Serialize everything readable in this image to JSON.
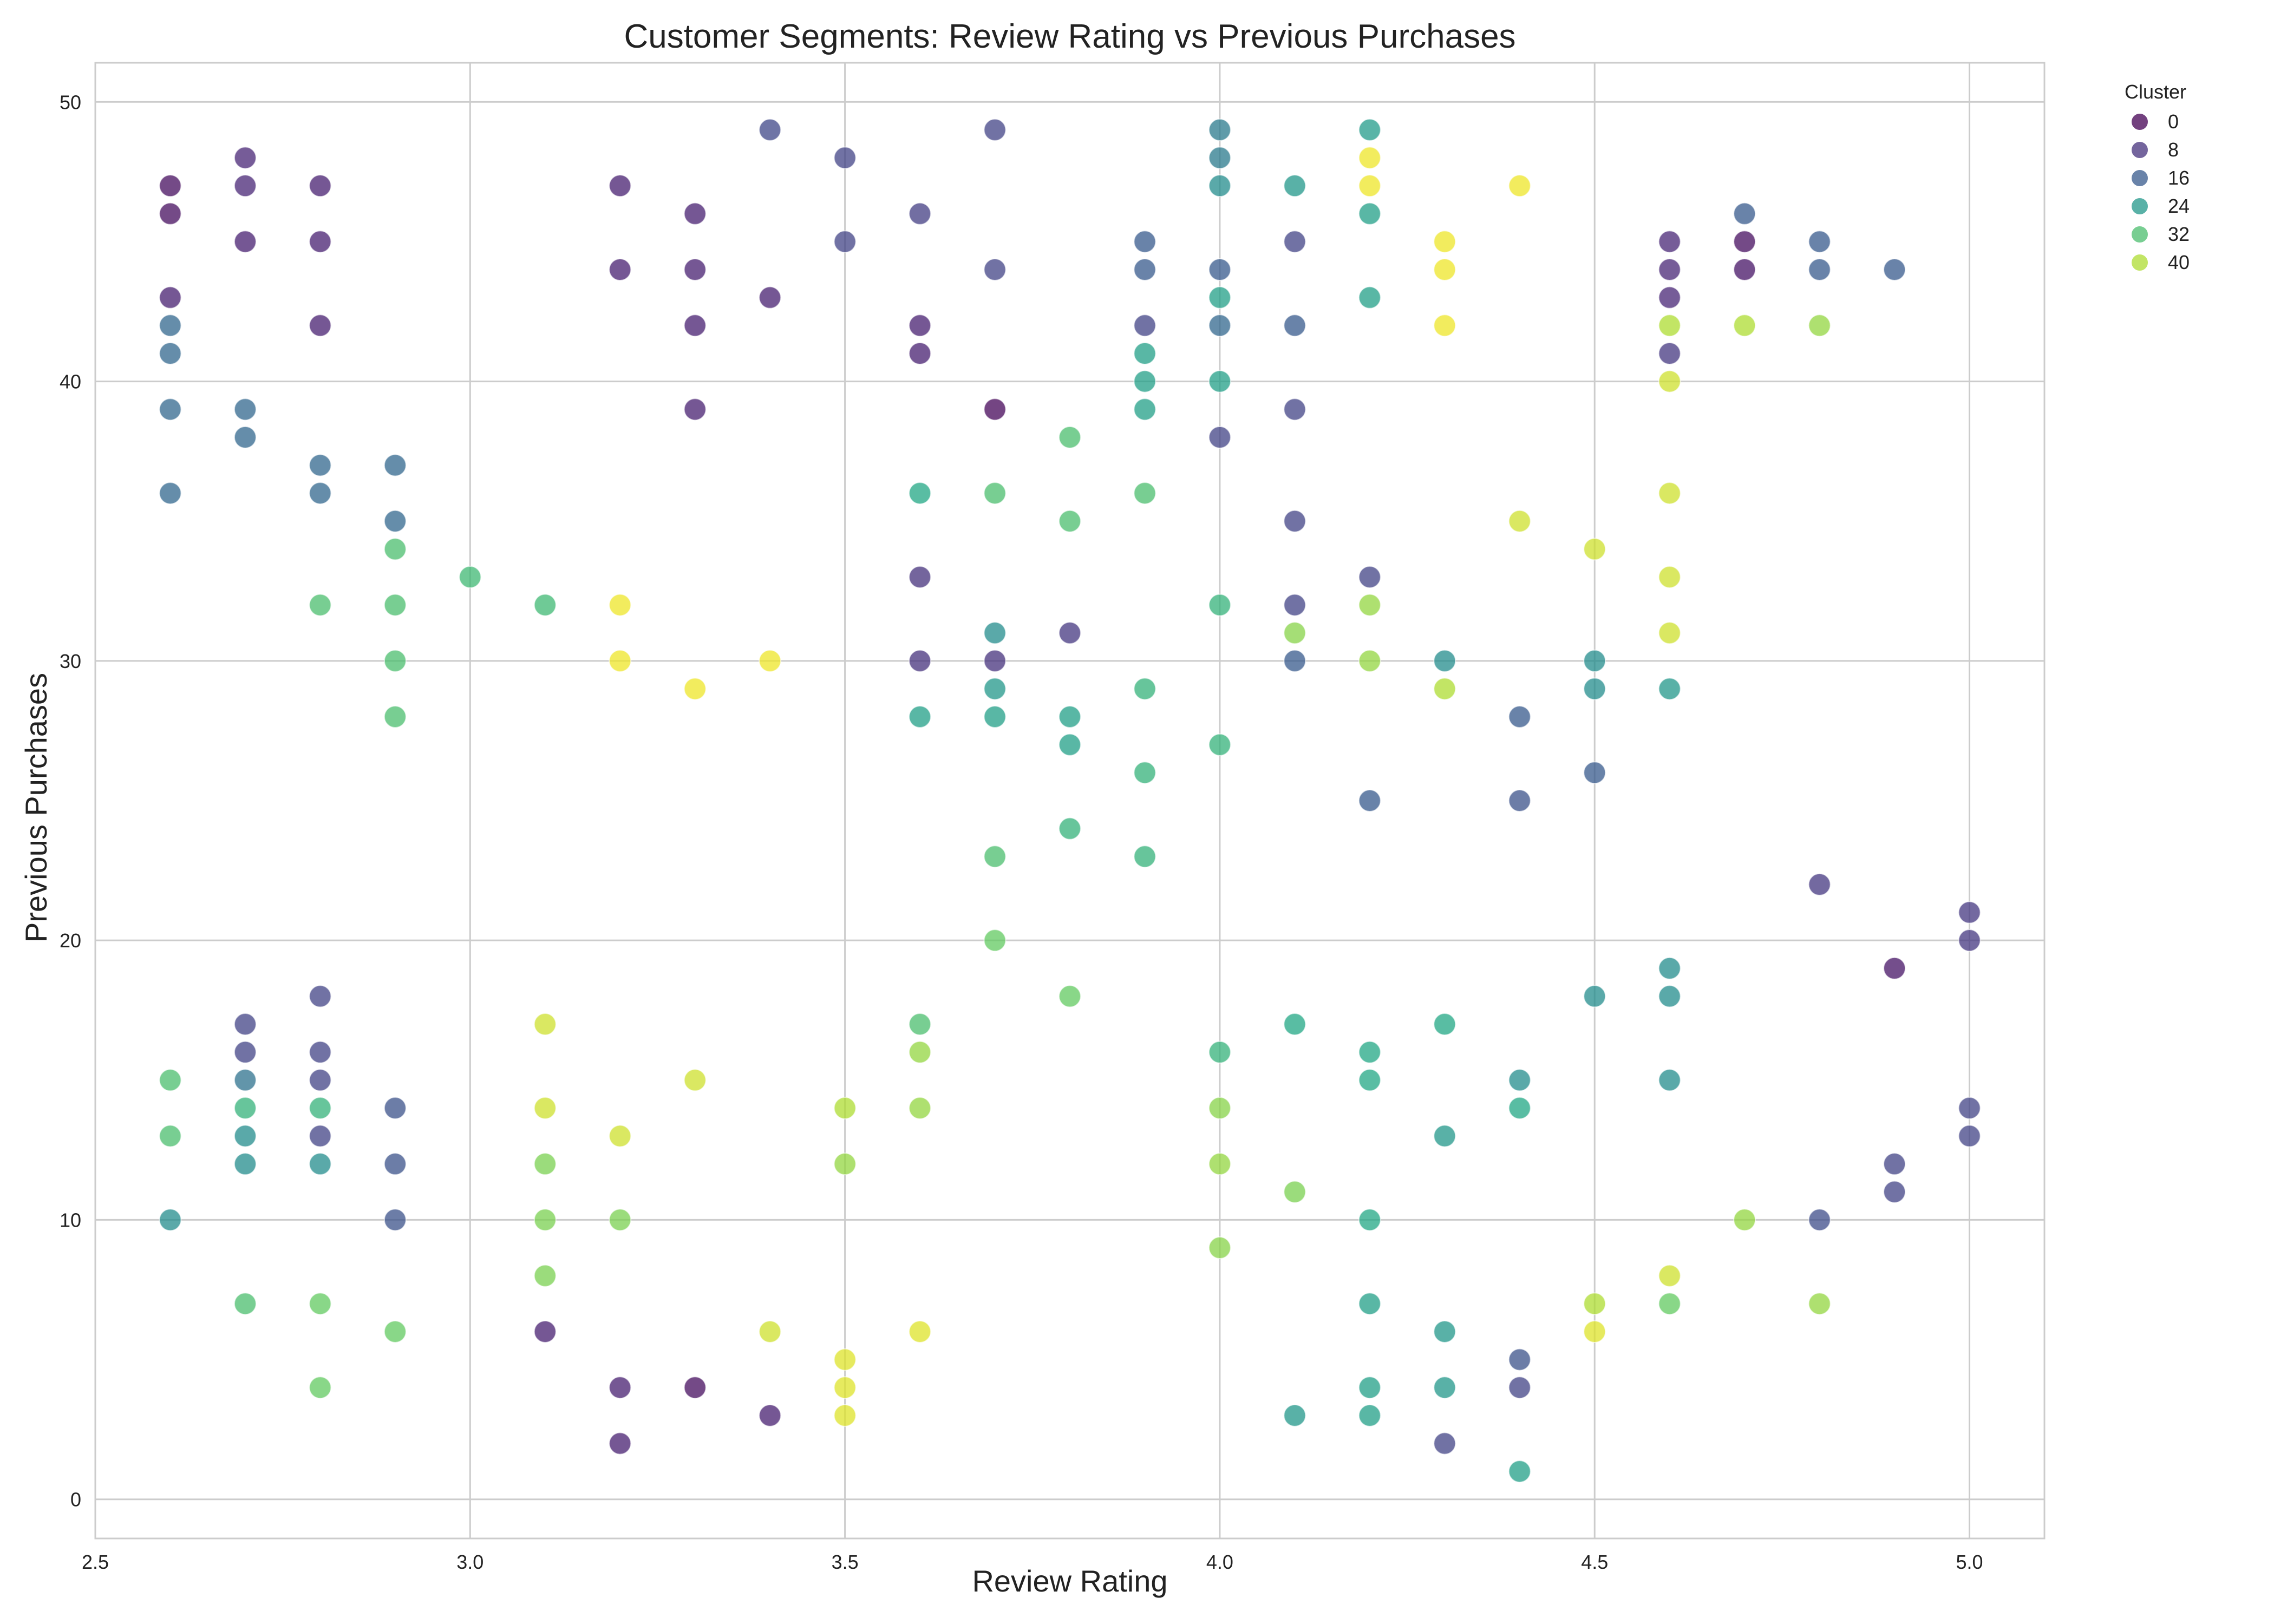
{
  "chart_data": {
    "type": "scatter",
    "title": "Customer Segments: Review Rating vs Previous Purchases",
    "xlabel": "Review Rating",
    "ylabel": "Previous Purchases",
    "xlim": [
      2.5,
      5.1
    ],
    "ylim": [
      -1.4,
      51.4
    ],
    "xticks": [
      2.5,
      3.0,
      3.5,
      4.0,
      4.5,
      5.0
    ],
    "xtick_labels": [
      "2.5",
      "3.0",
      "3.5",
      "4.0",
      "4.5",
      "5.0"
    ],
    "yticks": [
      0,
      10,
      20,
      30,
      40,
      50
    ],
    "ytick_labels": [
      "0",
      "10",
      "20",
      "30",
      "40",
      "50"
    ],
    "grid": true,
    "colormap": "viridis",
    "legend": {
      "title": "Cluster",
      "placement": "outside-top-right",
      "entries": [
        {
          "label": "0",
          "value": 0
        },
        {
          "label": "8",
          "value": 8
        },
        {
          "label": "16",
          "value": 16
        },
        {
          "label": "24",
          "value": 24
        },
        {
          "label": "32",
          "value": 32
        },
        {
          "label": "40",
          "value": 40
        }
      ]
    },
    "cluster_range": [
      0,
      45
    ],
    "points": [
      [
        2.6,
        47,
        2
      ],
      [
        2.6,
        46,
        2
      ],
      [
        2.6,
        43,
        5
      ],
      [
        2.6,
        42,
        18
      ],
      [
        2.6,
        41,
        18
      ],
      [
        2.6,
        39,
        18
      ],
      [
        2.6,
        36,
        18
      ],
      [
        2.6,
        15,
        32
      ],
      [
        2.6,
        13,
        32
      ],
      [
        2.6,
        10,
        22
      ],
      [
        2.7,
        48,
        6
      ],
      [
        2.7,
        47,
        6
      ],
      [
        2.7,
        45,
        5
      ],
      [
        2.7,
        39,
        18
      ],
      [
        2.7,
        38,
        18
      ],
      [
        2.7,
        17,
        11
      ],
      [
        2.7,
        16,
        11
      ],
      [
        2.7,
        15,
        19
      ],
      [
        2.7,
        14,
        30
      ],
      [
        2.7,
        13,
        22
      ],
      [
        2.7,
        12,
        22
      ],
      [
        2.7,
        7,
        32
      ],
      [
        2.8,
        47,
        5
      ],
      [
        2.8,
        45,
        5
      ],
      [
        2.8,
        42,
        5
      ],
      [
        2.8,
        37,
        18
      ],
      [
        2.8,
        36,
        18
      ],
      [
        2.8,
        32,
        32
      ],
      [
        2.8,
        18,
        11
      ],
      [
        2.8,
        16,
        11
      ],
      [
        2.8,
        15,
        11
      ],
      [
        2.8,
        14,
        30
      ],
      [
        2.8,
        13,
        11
      ],
      [
        2.8,
        12,
        22
      ],
      [
        2.8,
        7,
        34
      ],
      [
        2.8,
        4,
        34
      ],
      [
        2.9,
        37,
        18
      ],
      [
        2.9,
        35,
        18
      ],
      [
        2.9,
        34,
        32
      ],
      [
        2.9,
        32,
        32
      ],
      [
        2.9,
        30,
        32
      ],
      [
        2.9,
        28,
        32
      ],
      [
        2.9,
        14,
        14
      ],
      [
        2.9,
        12,
        14
      ],
      [
        2.9,
        10,
        14
      ],
      [
        2.9,
        6,
        34
      ],
      [
        3.0,
        33,
        31
      ],
      [
        3.1,
        32,
        31
      ],
      [
        3.1,
        17,
        42
      ],
      [
        3.1,
        14,
        42
      ],
      [
        3.1,
        12,
        36
      ],
      [
        3.1,
        10,
        36
      ],
      [
        3.1,
        8,
        36
      ],
      [
        3.1,
        6,
        5
      ],
      [
        3.2,
        47,
        5
      ],
      [
        3.2,
        44,
        5
      ],
      [
        3.2,
        32,
        44
      ],
      [
        3.2,
        30,
        44
      ],
      [
        3.2,
        13,
        42
      ],
      [
        3.2,
        10,
        36
      ],
      [
        3.2,
        4,
        5
      ],
      [
        3.2,
        2,
        5
      ],
      [
        3.3,
        46,
        5
      ],
      [
        3.3,
        44,
        5
      ],
      [
        3.3,
        42,
        5
      ],
      [
        3.3,
        39,
        5
      ],
      [
        3.3,
        29,
        44
      ],
      [
        3.3,
        15,
        42
      ],
      [
        3.3,
        4,
        2
      ],
      [
        3.4,
        49,
        12
      ],
      [
        3.4,
        43,
        5
      ],
      [
        3.4,
        30,
        44
      ],
      [
        3.4,
        6,
        42
      ],
      [
        3.4,
        3,
        5
      ],
      [
        3.5,
        48,
        11
      ],
      [
        3.5,
        45,
        11
      ],
      [
        3.5,
        14,
        40
      ],
      [
        3.5,
        12,
        38
      ],
      [
        3.5,
        5,
        43
      ],
      [
        3.5,
        4,
        43
      ],
      [
        3.5,
        3,
        43
      ],
      [
        3.6,
        46,
        10
      ],
      [
        3.6,
        42,
        5
      ],
      [
        3.6,
        41,
        5
      ],
      [
        3.6,
        36,
        28
      ],
      [
        3.6,
        33,
        8
      ],
      [
        3.6,
        30,
        8
      ],
      [
        3.6,
        28,
        26
      ],
      [
        3.6,
        17,
        32
      ],
      [
        3.6,
        16,
        38
      ],
      [
        3.6,
        14,
        38
      ],
      [
        3.6,
        6,
        43
      ],
      [
        3.7,
        49,
        11
      ],
      [
        3.7,
        44,
        11
      ],
      [
        3.7,
        39,
        1
      ],
      [
        3.7,
        36,
        32
      ],
      [
        3.7,
        31,
        22
      ],
      [
        3.7,
        30,
        8
      ],
      [
        3.7,
        29,
        24
      ],
      [
        3.7,
        28,
        26
      ],
      [
        3.7,
        23,
        32
      ],
      [
        3.7,
        20,
        34
      ],
      [
        3.8,
        38,
        32
      ],
      [
        3.8,
        35,
        32
      ],
      [
        3.8,
        31,
        9
      ],
      [
        3.8,
        28,
        26
      ],
      [
        3.8,
        27,
        26
      ],
      [
        3.8,
        24,
        30
      ],
      [
        3.8,
        18,
        34
      ],
      [
        3.9,
        45,
        16
      ],
      [
        3.9,
        44,
        16
      ],
      [
        3.9,
        42,
        11
      ],
      [
        3.9,
        41,
        26
      ],
      [
        3.9,
        40,
        26
      ],
      [
        3.9,
        39,
        26
      ],
      [
        3.9,
        36,
        32
      ],
      [
        3.9,
        29,
        30
      ],
      [
        3.9,
        26,
        30
      ],
      [
        3.9,
        23,
        30
      ],
      [
        4.0,
        49,
        20
      ],
      [
        4.0,
        48,
        20
      ],
      [
        4.0,
        47,
        22
      ],
      [
        4.0,
        44,
        16
      ],
      [
        4.0,
        43,
        26
      ],
      [
        4.0,
        42,
        18
      ],
      [
        4.0,
        40,
        26
      ],
      [
        4.0,
        38,
        11
      ],
      [
        4.0,
        32,
        30
      ],
      [
        4.0,
        27,
        30
      ],
      [
        4.0,
        16,
        30
      ],
      [
        4.0,
        14,
        37
      ],
      [
        4.0,
        12,
        38
      ],
      [
        4.0,
        9,
        37
      ],
      [
        4.1,
        47,
        24
      ],
      [
        4.1,
        45,
        11
      ],
      [
        4.1,
        42,
        16
      ],
      [
        4.1,
        39,
        11
      ],
      [
        4.1,
        35,
        11
      ],
      [
        4.1,
        32,
        11
      ],
      [
        4.1,
        31,
        37
      ],
      [
        4.1,
        30,
        16
      ],
      [
        4.1,
        17,
        28
      ],
      [
        4.1,
        11,
        36
      ],
      [
        4.1,
        3,
        24
      ],
      [
        4.2,
        49,
        25
      ],
      [
        4.2,
        48,
        44
      ],
      [
        4.2,
        47,
        44
      ],
      [
        4.2,
        46,
        26
      ],
      [
        4.2,
        43,
        26
      ],
      [
        4.2,
        33,
        11
      ],
      [
        4.2,
        32,
        38
      ],
      [
        4.2,
        30,
        38
      ],
      [
        4.2,
        25,
        16
      ],
      [
        4.2,
        16,
        28
      ],
      [
        4.2,
        15,
        28
      ],
      [
        4.2,
        10,
        28
      ],
      [
        4.2,
        7,
        26
      ],
      [
        4.2,
        4,
        26
      ],
      [
        4.2,
        3,
        26
      ],
      [
        4.3,
        45,
        44
      ],
      [
        4.3,
        44,
        44
      ],
      [
        4.3,
        42,
        44
      ],
      [
        4.3,
        30,
        22
      ],
      [
        4.3,
        29,
        40
      ],
      [
        4.3,
        17,
        28
      ],
      [
        4.3,
        13,
        24
      ],
      [
        4.3,
        6,
        24
      ],
      [
        4.3,
        4,
        24
      ],
      [
        4.3,
        2,
        11
      ],
      [
        4.4,
        47,
        44
      ],
      [
        4.4,
        35,
        42
      ],
      [
        4.4,
        28,
        16
      ],
      [
        4.4,
        25,
        14
      ],
      [
        4.4,
        15,
        22
      ],
      [
        4.4,
        14,
        28
      ],
      [
        4.4,
        5,
        14
      ],
      [
        4.4,
        4,
        11
      ],
      [
        4.4,
        1,
        26
      ],
      [
        4.5,
        34,
        42
      ],
      [
        4.5,
        30,
        22
      ],
      [
        4.5,
        29,
        22
      ],
      [
        4.5,
        26,
        16
      ],
      [
        4.5,
        18,
        22
      ],
      [
        4.5,
        7,
        40
      ],
      [
        4.5,
        6,
        43
      ],
      [
        4.6,
        45,
        6
      ],
      [
        4.6,
        44,
        6
      ],
      [
        4.6,
        43,
        6
      ],
      [
        4.6,
        42,
        40
      ],
      [
        4.6,
        41,
        9
      ],
      [
        4.6,
        40,
        42
      ],
      [
        4.6,
        36,
        42
      ],
      [
        4.6,
        33,
        42
      ],
      [
        4.6,
        31,
        42
      ],
      [
        4.6,
        29,
        24
      ],
      [
        4.6,
        19,
        22
      ],
      [
        4.6,
        18,
        22
      ],
      [
        4.6,
        15,
        22
      ],
      [
        4.6,
        8,
        42
      ],
      [
        4.6,
        7,
        34
      ],
      [
        4.7,
        46,
        16
      ],
      [
        4.7,
        45,
        2
      ],
      [
        4.7,
        44,
        3
      ],
      [
        4.7,
        42,
        40
      ],
      [
        4.7,
        10,
        38
      ],
      [
        4.8,
        45,
        16
      ],
      [
        4.8,
        44,
        16
      ],
      [
        4.8,
        42,
        38
      ],
      [
        4.8,
        22,
        9
      ],
      [
        4.8,
        10,
        13
      ],
      [
        4.8,
        7,
        38
      ],
      [
        4.9,
        44,
        16
      ],
      [
        4.9,
        19,
        3
      ],
      [
        4.9,
        12,
        11
      ],
      [
        4.9,
        11,
        11
      ],
      [
        5.0,
        21,
        9
      ],
      [
        5.0,
        20,
        9
      ],
      [
        5.0,
        14,
        11
      ],
      [
        5.0,
        13,
        11
      ]
    ]
  }
}
